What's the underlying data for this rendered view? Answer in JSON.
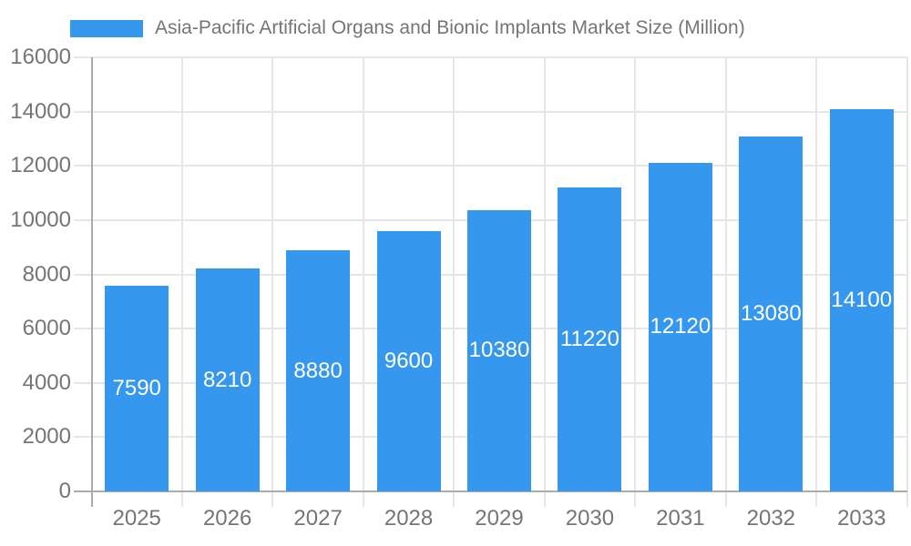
{
  "page": {
    "background_color": "#ffffff"
  },
  "legend": {
    "label": "Asia-Pacific Artificial Organs and Bionic Implants Market Size (Million)",
    "swatch_color": "#3697ee"
  },
  "chart_data": {
    "type": "bar",
    "title": "Asia-Pacific Artificial Organs and Bionic Implants Market Size (Million)",
    "series_name": "Asia-Pacific Artificial Organs and Bionic Implants Market Size (Million)",
    "categories": [
      "2025",
      "2026",
      "2027",
      "2028",
      "2029",
      "2030",
      "2031",
      "2032",
      "2033"
    ],
    "values": [
      7590,
      8210,
      8880,
      9600,
      10380,
      11220,
      12120,
      13080,
      14100
    ],
    "value_labels": [
      "7590",
      "8210",
      "8880",
      "9600",
      "10380",
      "11220",
      "12120",
      "13080",
      "14100"
    ],
    "xlabel": "",
    "ylabel": "",
    "ylim": [
      0,
      16000
    ],
    "yticks": [
      0,
      2000,
      4000,
      6000,
      8000,
      10000,
      12000,
      14000,
      16000
    ],
    "grid": true,
    "legend_position": "top",
    "colors": {
      "bar": "#3697ee",
      "value_label_text": "#ffffff",
      "axis_text": "#757575",
      "gridline": "#e6e6e6",
      "axis_line": "#ababab"
    }
  }
}
